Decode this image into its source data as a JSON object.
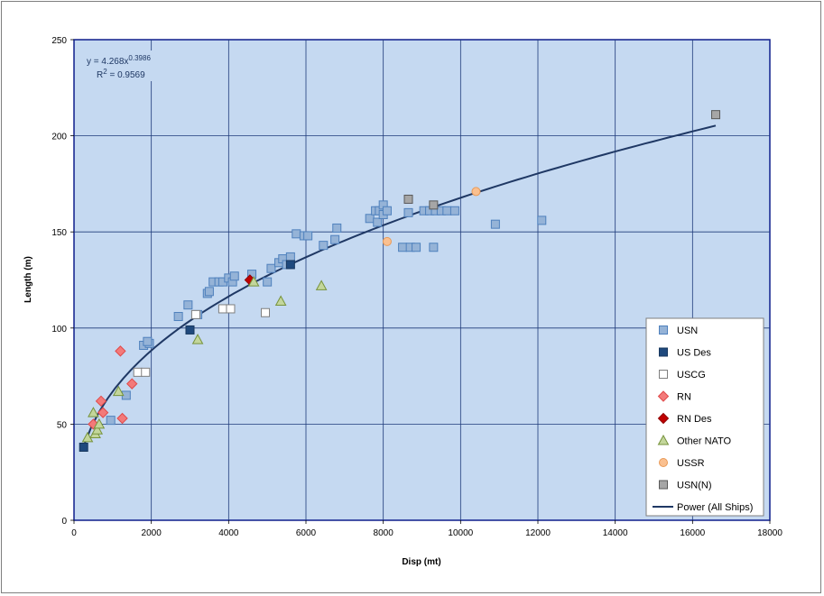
{
  "chart_data": {
    "type": "scatter",
    "title": "",
    "xlabel": "Disp (mt)",
    "ylabel": "Length (m)",
    "xlim": [
      0,
      18000
    ],
    "ylim": [
      0,
      250
    ],
    "xticks": [
      0,
      2000,
      4000,
      6000,
      8000,
      10000,
      12000,
      14000,
      16000,
      18000
    ],
    "yticks": [
      0,
      50,
      100,
      150,
      200,
      250
    ],
    "grid": true,
    "legend_position": "right",
    "plot_background": "#c5d9f1",
    "gridline_color": "#1f3b7a",
    "trendline": {
      "name": "Power (All Ships)",
      "a": 4.268,
      "b": 0.3986,
      "x_range": [
        250,
        16600
      ],
      "color": "#1f3864",
      "equation_label": {
        "prefix": "y = 4.268x",
        "exponent": "0.3986",
        "r2_prefix": "R",
        "r2_exp": "2",
        "r2_value": " = 0.9569"
      }
    },
    "series": [
      {
        "name": "USN",
        "marker": "square",
        "fill": "#95b3d7",
        "stroke": "#4f81bd",
        "points": [
          [
            1800,
            91
          ],
          [
            1950,
            92
          ],
          [
            1900,
            93
          ],
          [
            1350,
            65
          ],
          [
            950,
            52
          ],
          [
            2700,
            106
          ],
          [
            2950,
            112
          ],
          [
            3200,
            107
          ],
          [
            3450,
            118
          ],
          [
            3500,
            119
          ],
          [
            3600,
            124
          ],
          [
            3750,
            124
          ],
          [
            3850,
            124
          ],
          [
            4000,
            126
          ],
          [
            4100,
            124
          ],
          [
            4150,
            127
          ],
          [
            4600,
            128
          ],
          [
            5000,
            124
          ],
          [
            5100,
            131
          ],
          [
            5300,
            134
          ],
          [
            5400,
            136
          ],
          [
            5500,
            133
          ],
          [
            5600,
            137
          ],
          [
            5750,
            149
          ],
          [
            5950,
            148
          ],
          [
            6050,
            148
          ],
          [
            6450,
            143
          ],
          [
            6750,
            146
          ],
          [
            6800,
            152
          ],
          [
            7650,
            157
          ],
          [
            7800,
            161
          ],
          [
            7850,
            155
          ],
          [
            7900,
            161
          ],
          [
            8000,
            164
          ],
          [
            8000,
            159
          ],
          [
            8100,
            161
          ],
          [
            8650,
            160
          ],
          [
            8500,
            142
          ],
          [
            8700,
            142
          ],
          [
            8850,
            142
          ],
          [
            9300,
            142
          ],
          [
            9050,
            161
          ],
          [
            9200,
            161
          ],
          [
            9350,
            161
          ],
          [
            9500,
            161
          ],
          [
            9650,
            161
          ],
          [
            9850,
            161
          ],
          [
            10900,
            154
          ],
          [
            12100,
            156
          ]
        ]
      },
      {
        "name": "US Des",
        "marker": "square",
        "fill": "#1f497d",
        "stroke": "#17375e",
        "points": [
          [
            250,
            38
          ],
          [
            3000,
            99
          ],
          [
            5600,
            133
          ]
        ]
      },
      {
        "name": "USCG",
        "marker": "square",
        "fill": "#ffffff",
        "stroke": "#7f7f7f",
        "points": [
          [
            1650,
            77
          ],
          [
            1850,
            77
          ],
          [
            3150,
            107
          ],
          [
            3850,
            110
          ],
          [
            4050,
            110
          ],
          [
            4950,
            108
          ]
        ]
      },
      {
        "name": "RN",
        "marker": "diamond",
        "fill": "#f37a7a",
        "stroke": "#e04a4a",
        "points": [
          [
            500,
            50
          ],
          [
            700,
            62
          ],
          [
            750,
            56
          ],
          [
            1200,
            88
          ],
          [
            1250,
            53
          ],
          [
            1500,
            71
          ]
        ]
      },
      {
        "name": "RN Des",
        "marker": "diamond",
        "fill": "#c00000",
        "stroke": "#900000",
        "points": [
          [
            4550,
            125
          ]
        ]
      },
      {
        "name": "Other NATO",
        "marker": "triangle",
        "fill": "#c3d69b",
        "stroke": "#77933c",
        "points": [
          [
            350,
            43
          ],
          [
            500,
            56
          ],
          [
            550,
            45
          ],
          [
            600,
            47
          ],
          [
            650,
            50
          ],
          [
            1150,
            67
          ],
          [
            3200,
            94
          ],
          [
            4650,
            124
          ],
          [
            5350,
            114
          ],
          [
            6400,
            122
          ]
        ]
      },
      {
        "name": "USSR",
        "marker": "circle",
        "fill": "#fac090",
        "stroke": "#e99a57",
        "points": [
          [
            8100,
            145
          ],
          [
            10400,
            171
          ]
        ]
      },
      {
        "name": "USN(N)",
        "marker": "square",
        "fill": "#a6a6a6",
        "stroke": "#595959",
        "points": [
          [
            8650,
            167
          ],
          [
            9300,
            164
          ],
          [
            16600,
            211
          ]
        ]
      }
    ]
  }
}
